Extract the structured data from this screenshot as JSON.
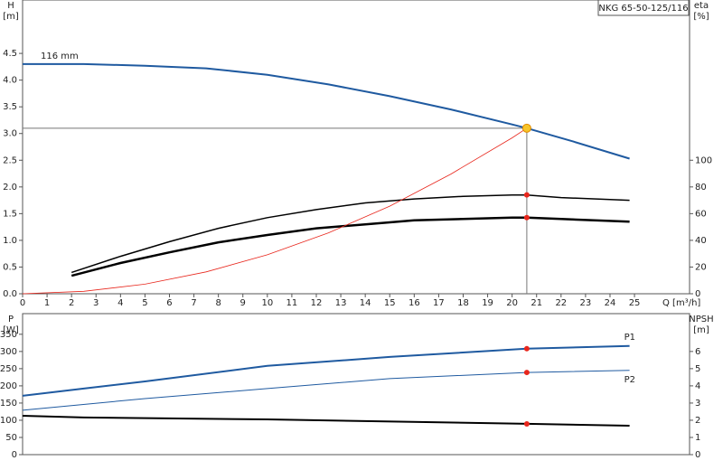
{
  "chart_data": [
    {
      "type": "line",
      "title": "NKG 65-50-125/116",
      "x_label": "Q [m³/h]",
      "y_label": "H",
      "y_unit": "[m]",
      "y2_label": "eta",
      "y2_unit": "[%]",
      "xlim": [
        0,
        27.25
      ],
      "ylim": [
        0,
        5.5
      ],
      "y2lim": [
        0,
        220
      ],
      "xticks": [
        0,
        1,
        2,
        3,
        4,
        5,
        6,
        7,
        8,
        9,
        10,
        11,
        12,
        13,
        14,
        15,
        16,
        17,
        18,
        19,
        20,
        21,
        22,
        23,
        24,
        25
      ],
      "yticks": [
        {
          "value": 0,
          "label": "0.0"
        },
        0.5,
        {
          "value": 1,
          "label": "1.0"
        },
        1.5,
        {
          "value": 2,
          "label": "2.0"
        },
        2.5,
        {
          "value": 3,
          "label": "3.0"
        },
        3.5,
        {
          "value": 4,
          "label": "4.0"
        },
        4.5
      ],
      "y2ticks": [
        0,
        20,
        40,
        60,
        80,
        100
      ],
      "duty_point": {
        "x": 20.6,
        "y": 3.1
      },
      "series": [
        {
          "name": "116 mm",
          "color": "#1f5aa0",
          "width": 2,
          "x": [
            0,
            2.5,
            5,
            7.5,
            10,
            12.5,
            15,
            17.5,
            20,
            20.6,
            22.5,
            24.8
          ],
          "values": [
            4.3,
            4.3,
            4.27,
            4.22,
            4.1,
            3.92,
            3.7,
            3.45,
            3.17,
            3.1,
            2.85,
            2.53
          ]
        },
        {
          "color": "#000000",
          "width": 1.5,
          "axis": "y2",
          "x": [
            2,
            4,
            6,
            8,
            10,
            12,
            14,
            16,
            18,
            20,
            20.6,
            22,
            24.8
          ],
          "values": [
            16,
            28,
            39,
            49,
            57,
            63,
            68,
            71,
            73,
            74,
            74,
            72,
            70
          ]
        },
        {
          "color": "#000000",
          "width": 2.5,
          "axis": "y2",
          "x": [
            2,
            4,
            6,
            8,
            10,
            12,
            14,
            16,
            18,
            20,
            20.6,
            22,
            24.8
          ],
          "values": [
            13.5,
            23,
            31,
            38.5,
            44,
            49,
            52,
            55,
            56,
            57,
            57,
            56,
            54
          ]
        },
        {
          "color": "#e8261c",
          "width": 0.8,
          "x": [
            0,
            2.5,
            5,
            7.5,
            10,
            12.5,
            15,
            17.5,
            20,
            20.6
          ],
          "values": [
            0,
            0.046,
            0.18,
            0.41,
            0.73,
            1.14,
            1.64,
            2.24,
            2.92,
            3.1
          ]
        }
      ]
    },
    {
      "type": "line",
      "y_label": "P",
      "y_unit": "[W]",
      "y2_label": "NPSH",
      "y2_unit": "[m]",
      "xlim": [
        0,
        27.25
      ],
      "ylim": [
        0,
        410
      ],
      "y2lim": [
        0,
        8.2
      ],
      "yticks": [
        0,
        50,
        100,
        150,
        200,
        250,
        300,
        350
      ],
      "y2ticks": [
        0,
        1,
        2,
        3,
        4,
        5,
        6
      ],
      "duty_point": {
        "x": 20.6
      },
      "series": [
        {
          "name": "P1",
          "color": "#1f5aa0",
          "width": 2,
          "x": [
            0,
            2.5,
            5,
            10,
            15,
            20.6,
            24.8
          ],
          "values": [
            171,
            192,
            213,
            258,
            284,
            308,
            316
          ]
        },
        {
          "name": "P2",
          "color": "#1f5aa0",
          "width": 1,
          "x": [
            0,
            5,
            10,
            15,
            20.6,
            24.8
          ],
          "values": [
            129,
            163,
            192,
            221,
            239,
            245
          ]
        },
        {
          "color": "#000000",
          "width": 2,
          "axis": "y2",
          "x": [
            0,
            2.5,
            10,
            20.6,
            24.8
          ],
          "values": [
            2.26,
            2.16,
            2.05,
            1.79,
            1.68
          ]
        }
      ]
    }
  ]
}
